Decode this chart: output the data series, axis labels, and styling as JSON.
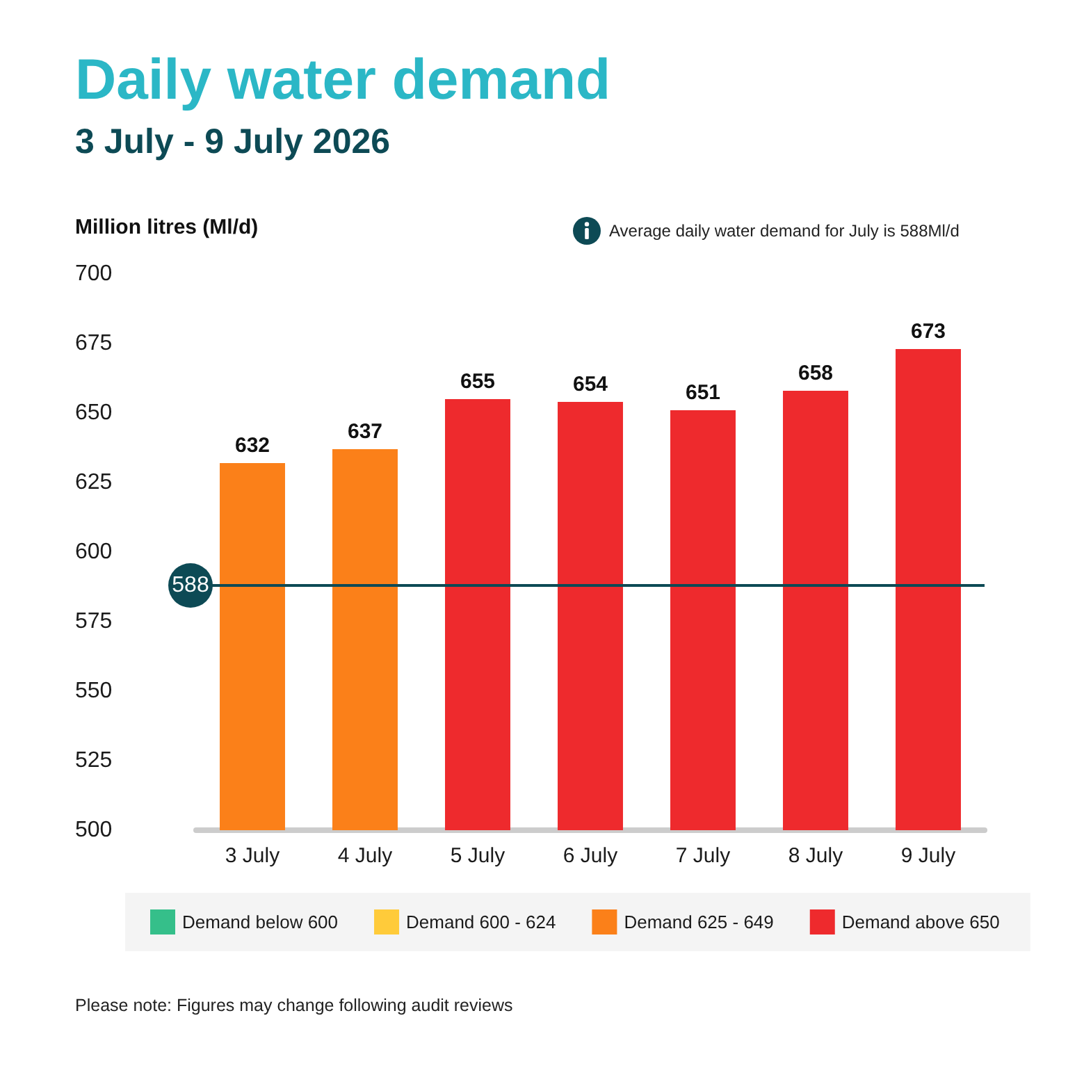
{
  "chart_data": {
    "type": "bar",
    "title": "Daily water demand",
    "subtitle": "3 July - 9 July 2026",
    "ylabel": "Million litres (Ml/d)",
    "categories": [
      "3 July",
      "4 July",
      "5 July",
      "6 July",
      "7 July",
      "8 July",
      "9 July"
    ],
    "series": [
      {
        "name": "Demand below 600",
        "color": "#35bf8a",
        "values": [
          null,
          null,
          null,
          null,
          null,
          null,
          null
        ]
      },
      {
        "name": "Demand 600 - 624",
        "color": "#ffcb3a",
        "values": [
          null,
          null,
          null,
          null,
          null,
          null,
          null
        ]
      },
      {
        "name": "Demand 625 - 649",
        "color": "#fb8019",
        "values": [
          632,
          637,
          null,
          null,
          null,
          null,
          null
        ]
      },
      {
        "name": "Demand above 650",
        "color": "#ee2a2d",
        "values": [
          null,
          null,
          655,
          654,
          651,
          658,
          673
        ]
      }
    ],
    "ylim": [
      500,
      700
    ],
    "yticks": [
      500,
      525,
      550,
      575,
      600,
      625,
      650,
      675,
      700
    ],
    "ref_lines": [
      {
        "axis": "y",
        "value": 588,
        "label": "588",
        "color": "#0d4a55"
      }
    ],
    "annotations": [
      "Average daily water demand for July is 588Ml/d",
      "Please note: Figures may change following audit reviews"
    ],
    "data_labels": true,
    "legend": "bottom"
  }
}
